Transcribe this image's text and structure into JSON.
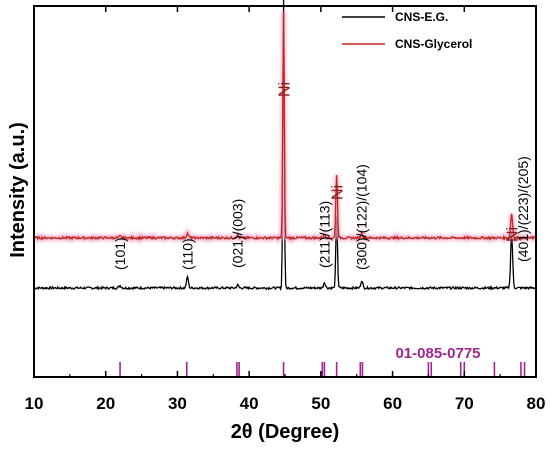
{
  "chart_data": {
    "type": "line",
    "xlabel": "2θ (Degree)",
    "ylabel": "Intensity (a.u.)",
    "xlim": [
      10,
      80
    ],
    "xticks": [
      "10",
      "20",
      "30",
      "40",
      "50",
      "60",
      "70",
      "80"
    ],
    "yticks_shown": false,
    "grid": false,
    "legend_position": "top-right",
    "series": [
      {
        "name": "CNS-E.G.",
        "color": "#000000",
        "baseline": 0.24,
        "peaks": [
          {
            "x": 22.0,
            "h": 0.006,
            "w": 0.35
          },
          {
            "x": 31.4,
            "h": 0.03,
            "w": 0.3
          },
          {
            "x": 38.4,
            "h": 0.008,
            "w": 0.3
          },
          {
            "x": 44.8,
            "h": 0.78,
            "w": 0.22
          },
          {
            "x": 50.5,
            "h": 0.015,
            "w": 0.3
          },
          {
            "x": 52.2,
            "h": 0.19,
            "w": 0.25
          },
          {
            "x": 55.7,
            "h": 0.02,
            "w": 0.3
          },
          {
            "x": 76.6,
            "h": 0.15,
            "w": 0.3
          }
        ]
      },
      {
        "name": "CNS-Glycerol",
        "color": "#c0281e",
        "baseline": 0.375,
        "peaks": [
          {
            "x": 22.0,
            "h": 0.004,
            "w": 0.35
          },
          {
            "x": 31.4,
            "h": 0.012,
            "w": 0.3
          },
          {
            "x": 38.4,
            "h": 0.008,
            "w": 0.3
          },
          {
            "x": 44.8,
            "h": 0.61,
            "w": 0.22
          },
          {
            "x": 50.5,
            "h": 0.01,
            "w": 0.3
          },
          {
            "x": 52.2,
            "h": 0.17,
            "w": 0.25
          },
          {
            "x": 55.7,
            "h": 0.012,
            "w": 0.3
          },
          {
            "x": 76.6,
            "h": 0.065,
            "w": 0.3
          }
        ]
      }
    ],
    "reference_pattern": {
      "label": "01-085-0775",
      "color": "#a0268f",
      "positions": [
        22.0,
        31.3,
        38.3,
        38.6,
        44.8,
        50.2,
        50.5,
        52.2,
        55.5,
        55.8,
        65.0,
        65.4,
        69.5,
        70.0,
        74.2,
        77.9,
        78.4
      ]
    },
    "annotations": [
      {
        "text": "(101)",
        "x": 22.0
      },
      {
        "text": "(110)",
        "x": 31.4
      },
      {
        "text": "(021)/(003)",
        "x": 38.4
      },
      {
        "text": "(211)/(113)",
        "x": 50.5
      },
      {
        "text": "(300)/(122)/(104)",
        "x": 55.7
      },
      {
        "text": "(401)/(223)/(205)",
        "x": 78.2
      }
    ],
    "ni_labels": [
      {
        "text": "Ni",
        "x": 44.8
      },
      {
        "text": "Ni",
        "x": 52.2
      },
      {
        "text": "Ni",
        "x": 76.6
      }
    ]
  }
}
